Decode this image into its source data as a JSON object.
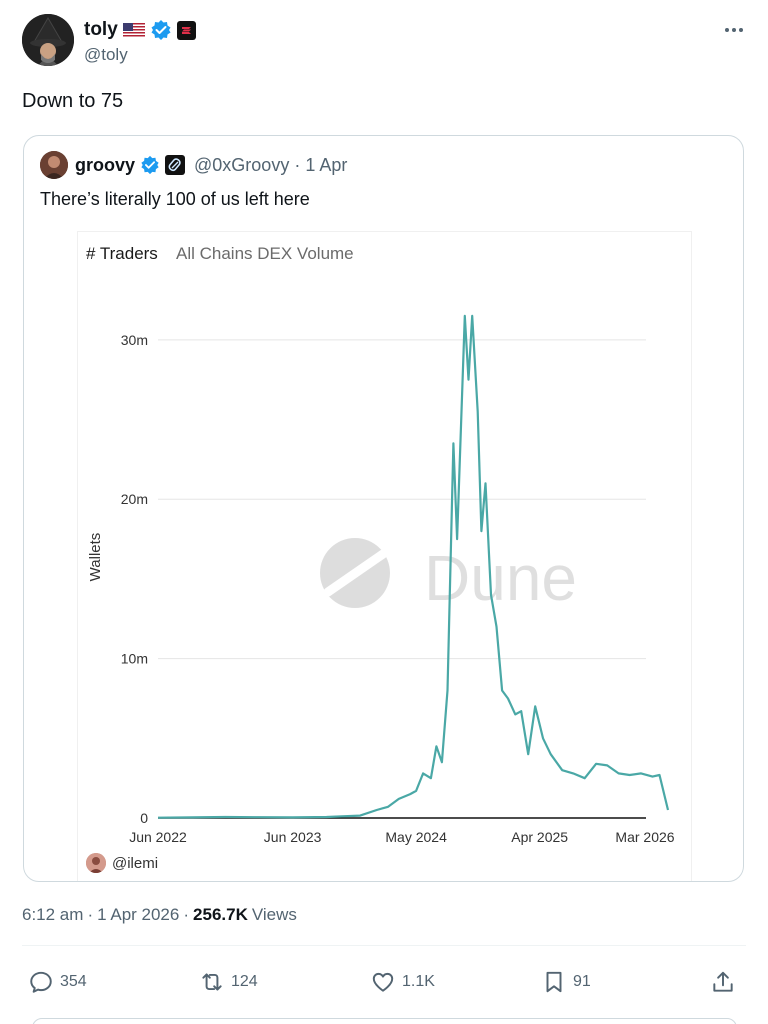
{
  "author": {
    "display_name": "toly",
    "handle": "@toly"
  },
  "post": {
    "text": "Down to 75",
    "time": "6:12 am",
    "date": "1 Apr 2026",
    "views_count": "256.7K",
    "views_label": "Views",
    "separator": "·"
  },
  "quote": {
    "display_name": "groovy",
    "handle": "@0xGroovy",
    "separator": "·",
    "date": "1 Apr",
    "text": "There’s literally 100 of us left here"
  },
  "chart": {
    "title": "# Traders",
    "subtitle": "All Chains DEX Volume",
    "credit": "@ilemi",
    "watermark": "Dune",
    "line_color": "#4aa8a6"
  },
  "chart_data": {
    "type": "line",
    "title": "# Traders",
    "subtitle": "All Chains DEX Volume",
    "ylabel": "Wallets",
    "xlabel": "",
    "ylim": [
      0,
      33000000
    ],
    "y_ticks": [
      0,
      10000000,
      20000000,
      30000000
    ],
    "y_tick_labels": [
      "0",
      "10m",
      "20m",
      "30m"
    ],
    "x_ticks": [
      "2022-06",
      "2023-06",
      "2024-05",
      "2025-04",
      "2026-03"
    ],
    "x_tick_labels": [
      "Jun 2022",
      "Jun 2023",
      "May 2024",
      "Apr 2025",
      "Mar 2026"
    ],
    "grid": true,
    "series": [
      {
        "values_unit": "wallets",
        "points": [
          [
            "2022-06-01",
            20000
          ],
          [
            "2022-09-01",
            40000
          ],
          [
            "2022-12-01",
            60000
          ],
          [
            "2023-03-01",
            50000
          ],
          [
            "2023-06-01",
            40000
          ],
          [
            "2023-09-01",
            60000
          ],
          [
            "2023-12-01",
            150000
          ],
          [
            "2024-01-15",
            500000
          ],
          [
            "2024-02-15",
            700000
          ],
          [
            "2024-03-15",
            1200000
          ],
          [
            "2024-04-15",
            1500000
          ],
          [
            "2024-05-01",
            1700000
          ],
          [
            "2024-05-20",
            2800000
          ],
          [
            "2024-06-10",
            2500000
          ],
          [
            "2024-06-25",
            4500000
          ],
          [
            "2024-07-10",
            3500000
          ],
          [
            "2024-07-25",
            8000000
          ],
          [
            "2024-08-10",
            23500000
          ],
          [
            "2024-08-20",
            17500000
          ],
          [
            "2024-09-01",
            25500000
          ],
          [
            "2024-09-10",
            31500000
          ],
          [
            "2024-09-20",
            27500000
          ],
          [
            "2024-09-30",
            31500000
          ],
          [
            "2024-10-15",
            25500000
          ],
          [
            "2024-10-25",
            18000000
          ],
          [
            "2024-11-05",
            21000000
          ],
          [
            "2024-11-20",
            14000000
          ],
          [
            "2024-12-05",
            12000000
          ],
          [
            "2024-12-20",
            8000000
          ],
          [
            "2025-01-05",
            7500000
          ],
          [
            "2025-01-25",
            6500000
          ],
          [
            "2025-02-10",
            6700000
          ],
          [
            "2025-03-01",
            4000000
          ],
          [
            "2025-03-20",
            7000000
          ],
          [
            "2025-04-10",
            5000000
          ],
          [
            "2025-05-01",
            4000000
          ],
          [
            "2025-06-01",
            3000000
          ],
          [
            "2025-07-01",
            2800000
          ],
          [
            "2025-08-01",
            2500000
          ],
          [
            "2025-09-01",
            3400000
          ],
          [
            "2025-10-01",
            3300000
          ],
          [
            "2025-11-01",
            2800000
          ],
          [
            "2025-12-01",
            2700000
          ],
          [
            "2026-01-01",
            2800000
          ],
          [
            "2026-02-01",
            2600000
          ],
          [
            "2026-02-20",
            2700000
          ],
          [
            "2026-03-15",
            500000
          ]
        ]
      }
    ]
  },
  "actions": {
    "replies": "354",
    "reposts": "124",
    "likes": "1.1K",
    "bookmarks": "91"
  }
}
